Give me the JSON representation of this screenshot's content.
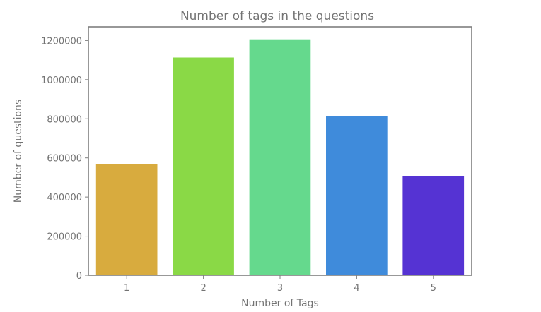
{
  "chart_data": {
    "type": "bar",
    "title": "Number of tags in the questions",
    "xlabel": "Number of Tags",
    "ylabel": "Number of questions",
    "categories": [
      "1",
      "2",
      "3",
      "4",
      "5"
    ],
    "values": [
      570000,
      1113000,
      1206000,
      813000,
      505000
    ],
    "colors": [
      "#d8ab3e",
      "#8ad946",
      "#65d98d",
      "#3f8bdb",
      "#5533d3"
    ],
    "ylim": [
      0,
      1270000
    ],
    "yticks": [
      0,
      200000,
      400000,
      600000,
      800000,
      1000000,
      1200000
    ],
    "ytick_labels": [
      "0",
      "200000",
      "400000",
      "600000",
      "800000",
      "1000000",
      "1200000"
    ],
    "grid": false,
    "legend": "none"
  }
}
